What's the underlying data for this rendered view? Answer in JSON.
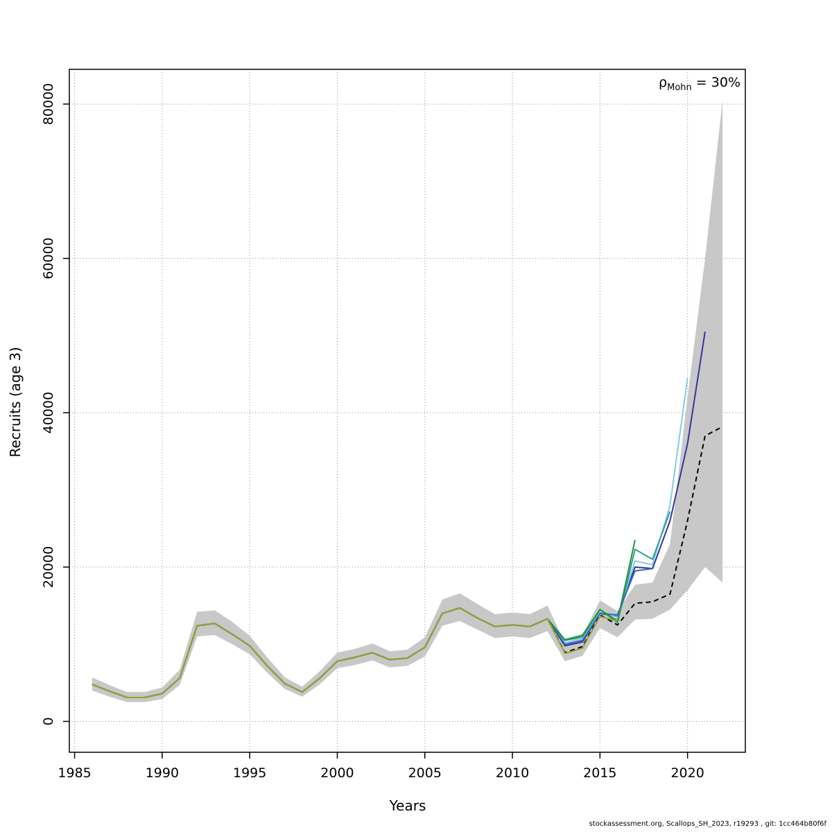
{
  "page": {
    "background": "#ffffff"
  },
  "axes": {
    "xlabel": "Years",
    "ylabel": "Recruits (age 3)"
  },
  "annotation": {
    "rho_symbol": "ρ",
    "rho_sub": "Mohn",
    "rho_rest": " = 30%"
  },
  "footer": {
    "text": "stockassessment.org, Scallops_SH_2023, r19293 , git: 1cc464b80f6f"
  },
  "chart_data": {
    "type": "line",
    "title": "",
    "xlabel": "Years",
    "ylabel": "Recruits (age 3)",
    "xlim": [
      1984.7,
      2023.3
    ],
    "ylim": [
      -4000,
      84500
    ],
    "x_ticks": [
      1985,
      1990,
      1995,
      2000,
      2005,
      2010,
      2015,
      2020
    ],
    "y_ticks": [
      0,
      20000,
      40000,
      60000,
      80000
    ],
    "grid": "dotted",
    "grid_color": "#8c8c8c",
    "annotation_text": "rho_Mohn = 30%",
    "band": {
      "name": "confidence-band",
      "color": "#c8c8c8",
      "start_year": 1986,
      "lower": [
        4000,
        3200,
        2500,
        2500,
        2900,
        4700,
        11000,
        11200,
        10000,
        8700,
        6300,
        4200,
        3200,
        4800,
        6900,
        7300,
        7900,
        7000,
        7200,
        8400,
        12400,
        13000,
        11900,
        10800,
        11000,
        10800,
        11700,
        7800,
        8500,
        12100,
        10900,
        13200,
        13300,
        14500,
        17000,
        20000,
        18000
      ],
      "upper": [
        5700,
        4700,
        3800,
        3800,
        4400,
        6700,
        14200,
        14400,
        12900,
        11100,
        8300,
        5700,
        4500,
        6500,
        8900,
        9400,
        10100,
        9100,
        9300,
        10900,
        15800,
        16600,
        15200,
        13900,
        14100,
        13900,
        15000,
        10200,
        11100,
        15700,
        14300,
        17700,
        18000,
        23000,
        42000,
        60000,
        80500
      ]
    },
    "series": [
      {
        "name": "final_2022",
        "style": "dashed",
        "color": "#000000",
        "start_year": 1986,
        "values": [
          4800,
          3900,
          3100,
          3100,
          3600,
          5600,
          12400,
          12700,
          11300,
          9800,
          7200,
          4900,
          3800,
          5600,
          7800,
          8300,
          8900,
          8000,
          8200,
          9600,
          14000,
          14700,
          13400,
          12300,
          12500,
          12300,
          13300,
          8900,
          9700,
          13800,
          12500,
          15300,
          15500,
          16500,
          26000,
          37000,
          38200
        ]
      },
      {
        "name": "peel_2021",
        "style": "solid",
        "color": "#34349c",
        "start_year": 1986,
        "values": [
          4800,
          3900,
          3100,
          3100,
          3600,
          5600,
          12400,
          12700,
          11300,
          9800,
          7200,
          4900,
          3800,
          5600,
          7800,
          8300,
          8900,
          8000,
          8200,
          9600,
          14000,
          14700,
          13400,
          12300,
          12500,
          12300,
          13300,
          9800,
          10300,
          14000,
          13600,
          20000,
          19800,
          26000,
          36000,
          50500
        ]
      },
      {
        "name": "peel_2020",
        "style": "solid",
        "color": "#7fcde6",
        "start_year": 1986,
        "values": [
          4800,
          3900,
          3100,
          3100,
          3600,
          5600,
          12400,
          12700,
          11300,
          9800,
          7200,
          4900,
          3800,
          5600,
          7800,
          8300,
          8900,
          8000,
          8200,
          9600,
          14000,
          14700,
          13400,
          12300,
          12500,
          12300,
          13300,
          10200,
          10800,
          14200,
          13500,
          20800,
          20300,
          28000,
          44500
        ]
      },
      {
        "name": "peel_2019",
        "style": "solid",
        "color": "#2fa08e",
        "start_year": 1986,
        "values": [
          4800,
          3900,
          3100,
          3100,
          3600,
          5600,
          12400,
          12700,
          11300,
          9800,
          7200,
          4900,
          3800,
          5600,
          7800,
          8300,
          8900,
          8000,
          8200,
          9600,
          14000,
          14700,
          13400,
          12300,
          12500,
          12300,
          13300,
          10600,
          11200,
          14500,
          12800,
          22300,
          21000,
          27200
        ]
      },
      {
        "name": "peel_2018",
        "style": "solid",
        "color": "#3c64cc",
        "start_year": 1986,
        "values": [
          4800,
          3900,
          3100,
          3100,
          3600,
          5600,
          12400,
          12700,
          11300,
          9800,
          7200,
          4900,
          3800,
          5600,
          7800,
          8300,
          8900,
          8000,
          8200,
          9600,
          14000,
          14700,
          13400,
          12300,
          12500,
          12300,
          13300,
          10000,
          10500,
          14000,
          13800,
          19500,
          19800
        ]
      },
      {
        "name": "peel_2017",
        "style": "solid",
        "color": "#1e9632",
        "start_year": 1986,
        "values": [
          4800,
          3900,
          3100,
          3100,
          3600,
          5600,
          12400,
          12700,
          11300,
          9800,
          7200,
          4900,
          3800,
          5600,
          7800,
          8300,
          8900,
          8000,
          8200,
          9600,
          14000,
          14700,
          13400,
          12300,
          12500,
          12300,
          13300,
          10500,
          11000,
          14500,
          13000,
          23500
        ]
      },
      {
        "name": "peel_2016",
        "style": "solid",
        "color": "#9aa02e",
        "start_year": 1986,
        "values": [
          4800,
          3900,
          3100,
          3100,
          3600,
          5600,
          12400,
          12700,
          11300,
          9800,
          7200,
          4900,
          3800,
          5600,
          7800,
          8300,
          8900,
          8000,
          8200,
          9600,
          14000,
          14700,
          13400,
          12300,
          12500,
          12300,
          13300,
          8800,
          9500,
          13600,
          13000
        ]
      }
    ]
  }
}
